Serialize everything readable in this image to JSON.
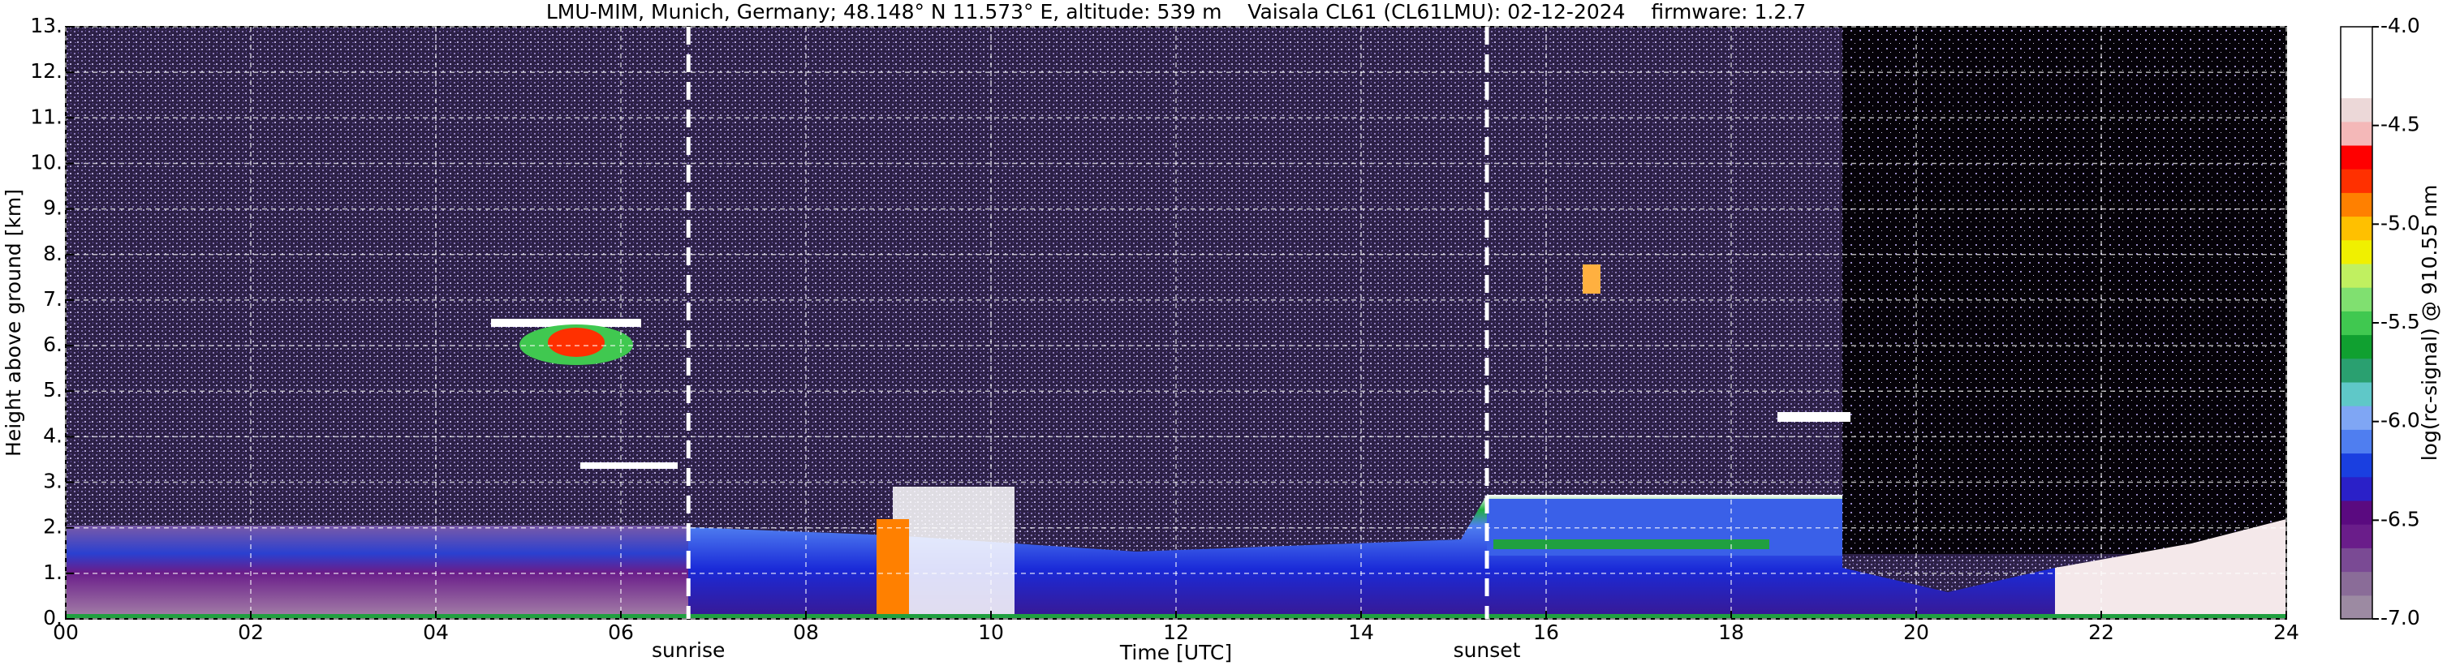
{
  "chart_data": {
    "type": "heatmap",
    "title": "LMU-MIM, Munich, Germany; 48.148° N 11.573° E, altitude: 539 m    Vaisala CL61 (CL61LMU): 02-12-2024    firmware: 1.2.7",
    "x_label": "Time [UTC]",
    "y_label": "Height above ground [km]",
    "xlim": [
      0,
      24
    ],
    "xticks": [
      {
        "value": 0,
        "label": "00"
      },
      {
        "value": 2,
        "label": "02"
      },
      {
        "value": 4,
        "label": "04"
      },
      {
        "value": 6,
        "label": "06"
      },
      {
        "value": 8,
        "label": "08"
      },
      10,
      12,
      14,
      16,
      18,
      20,
      22,
      24
    ],
    "ylim": [
      0,
      13
    ],
    "yticks": [
      {
        "value": 0,
        "label": "0."
      },
      {
        "value": 1,
        "label": "1."
      },
      {
        "value": 2,
        "label": "2."
      },
      {
        "value": 3,
        "label": "3."
      },
      {
        "value": 4,
        "label": "4."
      },
      {
        "value": 5,
        "label": "5."
      },
      {
        "value": 6,
        "label": "6."
      },
      {
        "value": 7,
        "label": "7."
      },
      {
        "value": 8,
        "label": "8."
      },
      {
        "value": 9,
        "label": "9."
      },
      {
        "value": 10,
        "label": "10."
      },
      {
        "value": 11,
        "label": "11."
      },
      {
        "value": 12,
        "label": "12."
      },
      {
        "value": 13,
        "label": "13."
      }
    ],
    "grid": true,
    "colorbar_label": "log(rc-signal) @ 910.55 nm",
    "clim": [
      -7,
      -4
    ],
    "cticks": [
      {
        "value": -7,
        "label": "-7.0"
      },
      {
        "value": -6.5,
        "label": "-6.5"
      },
      {
        "value": -6,
        "label": "-6.0"
      },
      {
        "value": -5.5,
        "label": "-5.5"
      },
      {
        "value": -5,
        "label": "-5.0"
      },
      {
        "value": -4.5,
        "label": "-4.5"
      },
      {
        "value": -4,
        "label": "-4.0"
      }
    ],
    "colormap": [
      "#9c8aa2",
      "#8a6c98",
      "#7a4a94",
      "#6a1d8a",
      "#5a0a80",
      "#2a20c8",
      "#1a3fe0",
      "#4f7ef0",
      "#7fa6f4",
      "#5fc8c8",
      "#2aa070",
      "#10a030",
      "#40c850",
      "#80e070",
      "#c0f060",
      "#f0f000",
      "#ffc000",
      "#ff8000",
      "#ff3000",
      "#ff0000",
      "#f4b8b8",
      "#ecd8d8",
      "#ffffff",
      "#ffffff",
      "#ffffff"
    ],
    "markers": [
      {
        "x": 6.73,
        "label": "sunrise"
      },
      {
        "x": 15.36,
        "label": "sunset"
      }
    ]
  }
}
